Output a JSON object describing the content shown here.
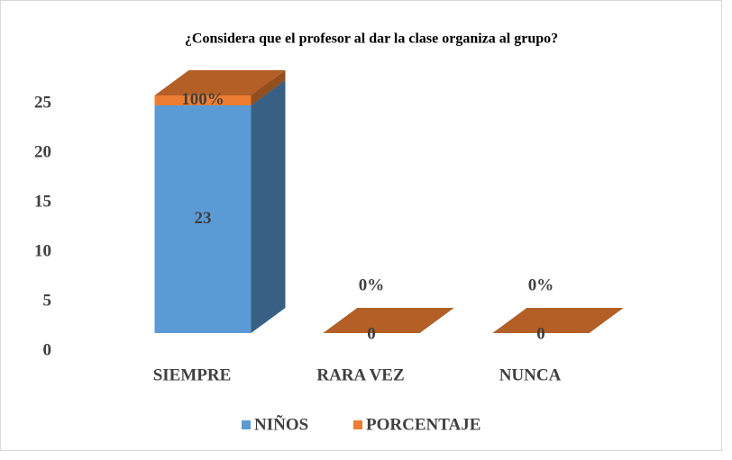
{
  "chart_data": {
    "type": "bar3d_stacked",
    "title": "¿Considera que el profesor al dar la clase organiza al grupo?",
    "categories": [
      "SIEMPRE",
      "RARA VEZ",
      "NUNCA"
    ],
    "series": [
      {
        "name": "NIÑOS",
        "color": "#5b9bd5",
        "values": [
          23,
          0,
          0
        ]
      },
      {
        "name": "PORCENTAJE",
        "color": "#ed7d31",
        "values": [
          1,
          0,
          0
        ],
        "value_labels": [
          "100%",
          "0%",
          "0%"
        ]
      }
    ],
    "ylim": [
      0,
      25
    ],
    "yticks": [
      0,
      5,
      10,
      15,
      20,
      25
    ],
    "legend": "bottom"
  }
}
